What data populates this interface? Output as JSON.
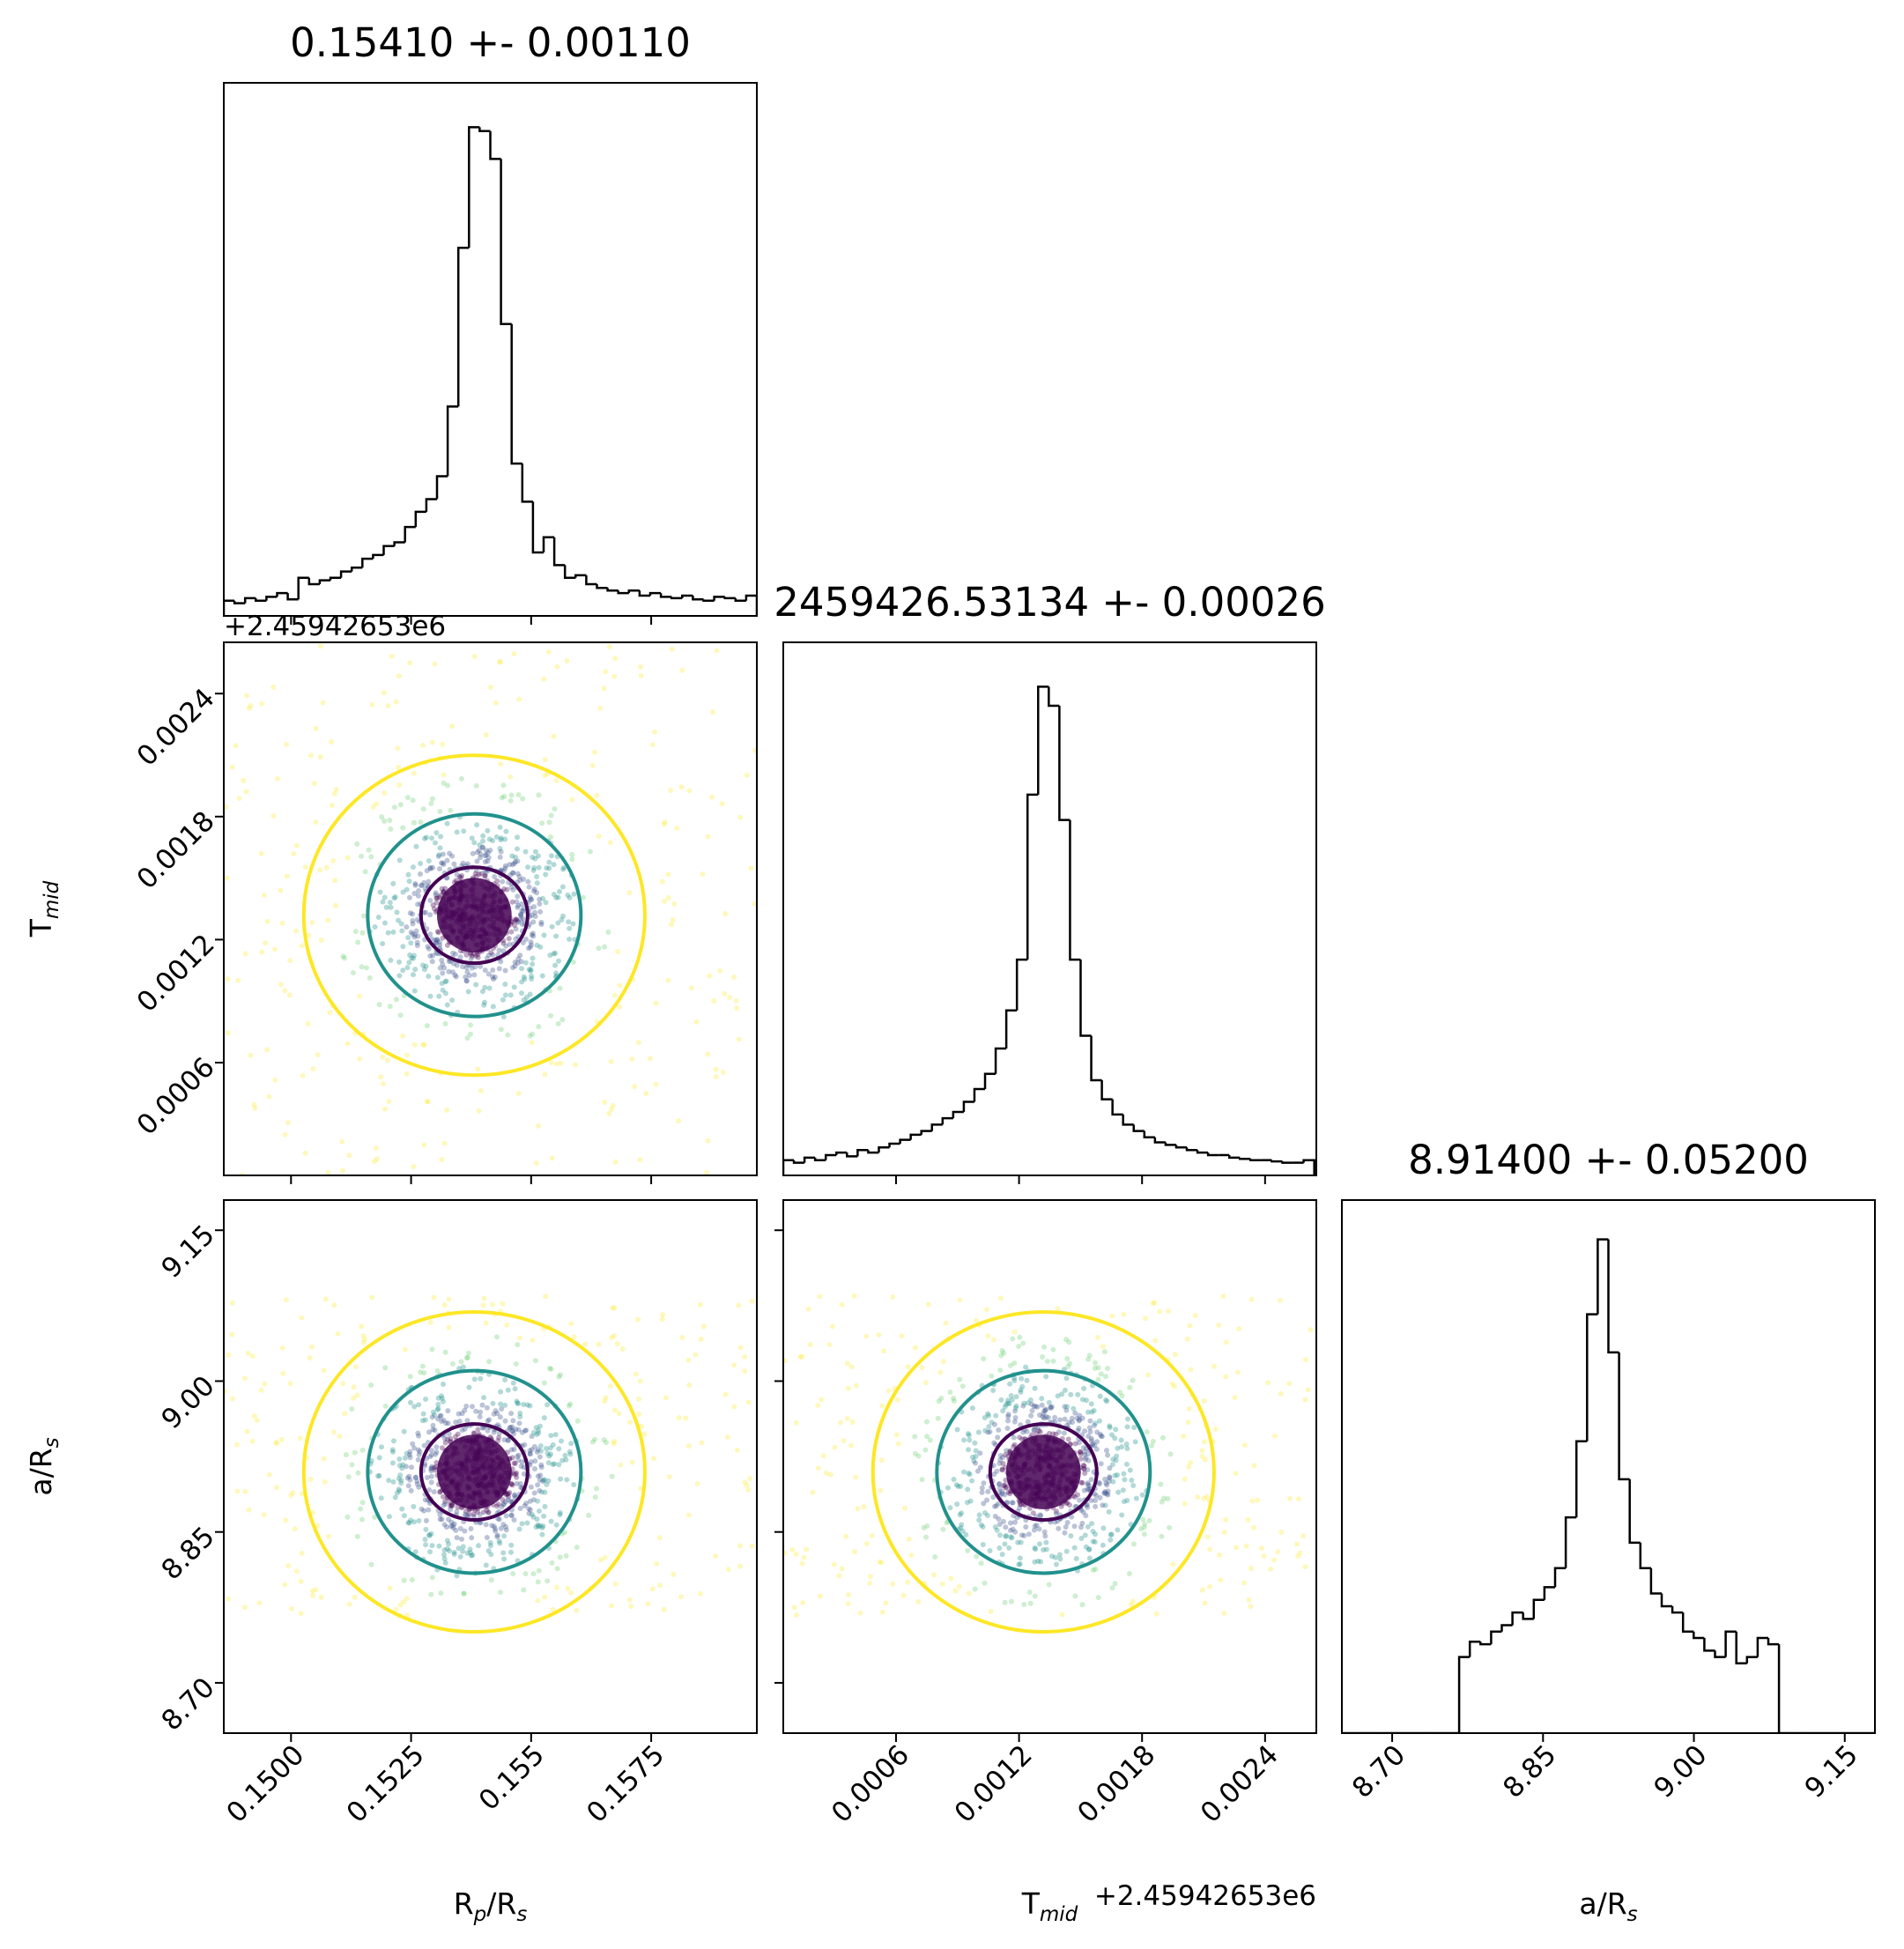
{
  "chart_data": {
    "type": "corner",
    "params": [
      {
        "label": [
          {
            "text": "R"
          },
          {
            "text": "p",
            "sub": true
          },
          {
            "text": "/R"
          },
          {
            "text": "s",
            "sub": true
          }
        ],
        "title": "0.15410 +- 0.00110",
        "lim": [
          0.1486,
          0.1597
        ],
        "ticks": [
          {
            "value": 0.15,
            "label": "0.1500"
          },
          0.1525,
          0.155,
          0.1575
        ],
        "hist_ylim": [
          0,
          420
        ],
        "bins": [
          0.1486,
          0.148822,
          0.149044,
          0.149266,
          0.149488,
          0.14971,
          0.149932,
          0.150154,
          0.150376,
          0.150598,
          0.15082,
          0.151042,
          0.151264,
          0.151486,
          0.151708,
          0.15193,
          0.152152,
          0.152374,
          0.152596,
          0.152818,
          0.15304,
          0.153262,
          0.153484,
          0.153706,
          0.153928,
          0.15415,
          0.154372,
          0.154594,
          0.154816,
          0.155038,
          0.15526,
          0.155482,
          0.155704,
          0.155926,
          0.156148,
          0.15637,
          0.156592,
          0.156814,
          0.157036,
          0.157258,
          0.15748,
          0.157702,
          0.157924,
          0.158146,
          0.158368,
          0.15859,
          0.158812,
          0.159034,
          0.159256,
          0.159478,
          0.1597
        ],
        "counts": [
          12,
          10,
          14,
          12,
          15,
          18,
          13,
          30,
          25,
          28,
          30,
          35,
          38,
          45,
          48,
          55,
          58,
          70,
          82,
          92,
          110,
          165,
          290,
          385,
          382,
          360,
          230,
          120,
          90,
          50,
          62,
          40,
          30,
          32,
          25,
          22,
          20,
          18,
          20,
          16,
          18,
          15,
          14,
          16,
          13,
          12,
          15,
          14,
          12,
          16
        ]
      },
      {
        "label": [
          {
            "text": "T"
          },
          {
            "text": "mid",
            "sub": true
          }
        ],
        "title": "2459426.53134 +- 0.00026",
        "offset": "+2.45942653e6",
        "lim": [
          5e-05,
          0.00265
        ],
        "ticks": [
          0.0006,
          0.0012,
          0.0018,
          0.0024
        ],
        "hist_ylim": [
          0,
          420
        ],
        "bins": [
          5e-05,
          0.0001018,
          0.0001536,
          0.0002054,
          0.0002572,
          0.000309,
          0.0003608,
          0.0004126,
          0.0004644,
          0.0005162,
          0.000568,
          0.0006198,
          0.0006716,
          0.0007234,
          0.0007752,
          0.000827,
          0.0008788,
          0.0009306,
          0.0009824,
          0.0010342,
          0.001086,
          0.0011378,
          0.0011896,
          0.0012414,
          0.0012932,
          0.001345,
          0.0013968,
          0.0014486,
          0.0015004,
          0.0015522,
          0.001604,
          0.0016558,
          0.0017076,
          0.0017594,
          0.0018112,
          0.001863,
          0.0019148,
          0.0019666,
          0.0020184,
          0.0020702,
          0.002122,
          0.0021738,
          0.0022256,
          0.0022774,
          0.0023292,
          0.002381,
          0.0024328,
          0.0024846,
          0.0025364,
          0.0025882,
          0.00264
        ],
        "counts": [
          12,
          10,
          14,
          12,
          16,
          18,
          15,
          20,
          18,
          22,
          25,
          28,
          32,
          35,
          40,
          45,
          50,
          58,
          68,
          80,
          100,
          130,
          170,
          300,
          385,
          370,
          280,
          170,
          110,
          75,
          60,
          48,
          40,
          35,
          30,
          26,
          24,
          22,
          20,
          18,
          16,
          16,
          14,
          13,
          12,
          12,
          11,
          10,
          10,
          12
        ]
      },
      {
        "label": [
          {
            "text": "a/R"
          },
          {
            "text": "s",
            "sub": true
          }
        ],
        "title": "8.91400 +- 0.05200",
        "lim": [
          8.65,
          9.18
        ],
        "ticks": [
          {
            "value": 8.7,
            "label": "8.70"
          },
          8.85,
          {
            "value": 9,
            "label": "9.00"
          },
          9.15
        ],
        "hist_ylim": [
          0,
          420
        ],
        "bins": [
          8.65,
          8.6606,
          8.6712,
          8.6818,
          8.6924,
          8.703,
          8.7136,
          8.7242,
          8.7348,
          8.7454,
          8.756,
          8.7666,
          8.7772,
          8.7878,
          8.7984,
          8.809,
          8.8196,
          8.8302,
          8.8408,
          8.8514,
          8.862,
          8.8726,
          8.8832,
          8.8938,
          8.9044,
          8.915,
          8.9256,
          8.9362,
          8.9468,
          8.9574,
          8.968,
          8.9786,
          8.9892,
          8.9998,
          9.0104,
          9.021,
          9.0316,
          9.0422,
          9.0528,
          9.0634,
          9.074,
          9.0846,
          9.0952,
          9.1058,
          9.1164,
          9.127,
          9.1376,
          9.1482,
          9.1588,
          9.1694,
          9.18
        ],
        "counts": [
          0,
          0,
          0,
          0,
          0,
          0,
          0,
          0,
          0,
          0,
          0,
          60,
          72,
          70,
          80,
          85,
          95,
          90,
          105,
          115,
          130,
          170,
          230,
          330,
          389,
          300,
          200,
          150,
          130,
          110,
          100,
          95,
          80,
          75,
          65,
          60,
          80,
          55,
          60,
          75,
          70,
          0,
          0,
          0,
          0,
          0,
          0,
          0,
          0,
          0
        ]
      }
    ],
    "hist_color": "#000000",
    "contour_colors": [
      "#440154",
      "#21918c",
      "#fde725"
    ]
  }
}
